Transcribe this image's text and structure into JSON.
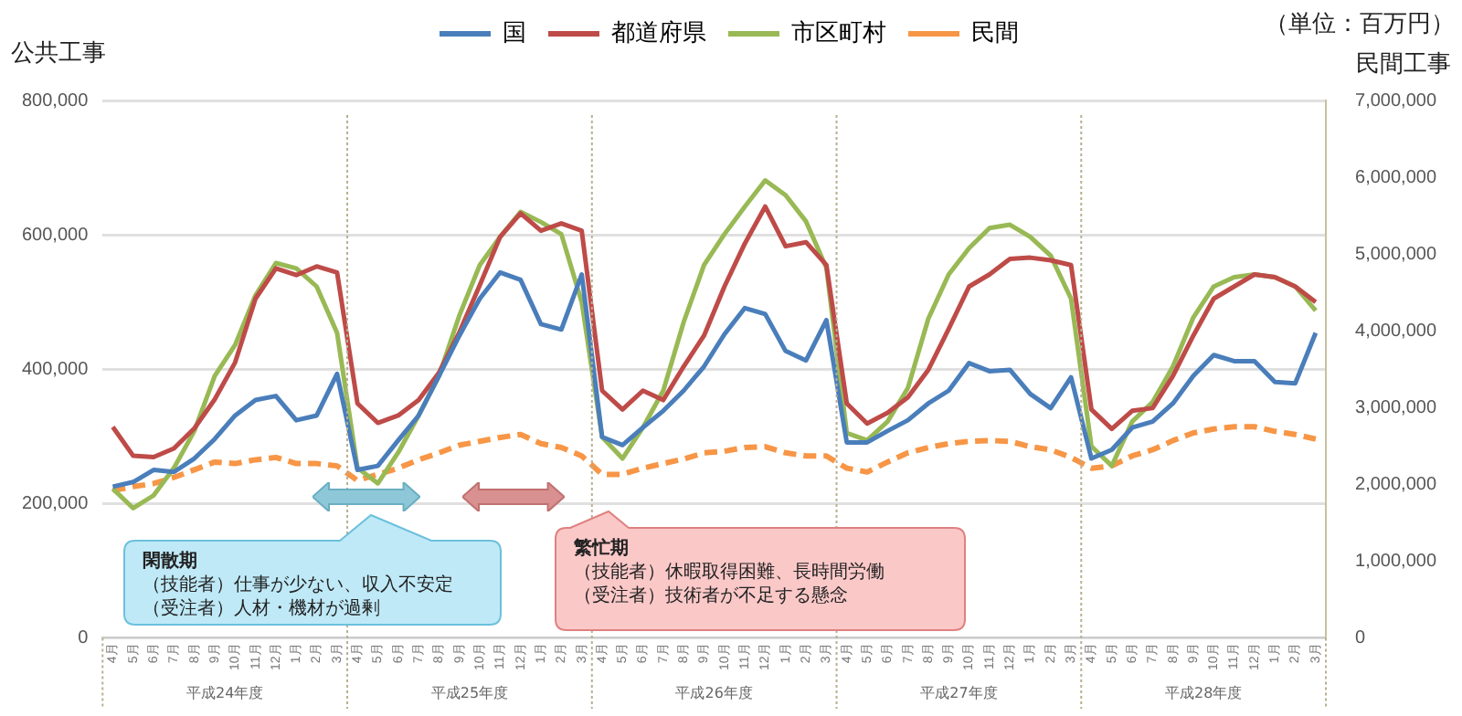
{
  "chart_data": {
    "type": "line",
    "ylabel": "公共工事",
    "y2label": "民間工事",
    "annotations": [
      "（単位：百万円）",
      "閑散期",
      "（技能者）仕事が少ない、収入不安定",
      "（受注者）人材・機材が過剰",
      "繁忙期",
      "（技能者）休暇取得困難、長時間労働",
      "（受注者）技術者が不足する懸念",
      "平成24年度",
      "平成25年度",
      "平成26年度",
      "平成27年度",
      "平成28年度"
    ],
    "categories": [
      "4月",
      "5月",
      "6月",
      "7月",
      "8月",
      "9月",
      "10月",
      "11月",
      "12月",
      "1月",
      "2月",
      "3月",
      "4月",
      "5月",
      "6月",
      "7月",
      "8月",
      "9月",
      "10月",
      "11月",
      "12月",
      "1月",
      "2月",
      "3月",
      "4月",
      "5月",
      "6月",
      "7月",
      "8月",
      "9月",
      "10月",
      "11月",
      "12月",
      "1月",
      "2月",
      "3月",
      "4月",
      "5月",
      "6月",
      "7月",
      "8月",
      "9月",
      "10月",
      "11月",
      "12月",
      "1月",
      "2月",
      "3月",
      "4月",
      "5月",
      "6月",
      "7月",
      "8月",
      "9月",
      "10月",
      "11月",
      "12月",
      "1月",
      "2月",
      "3月"
    ],
    "series": [
      {
        "name": "国",
        "color": "#4a7ebb",
        "values": [
          225000,
          232000,
          250000,
          247000,
          267000,
          296000,
          331000,
          354000,
          360000,
          324000,
          331000,
          393000,
          250000,
          256000,
          294000,
          331000,
          390000,
          450000,
          505000,
          544000,
          533000,
          467000,
          459000,
          541000,
          299000,
          287000,
          313000,
          338000,
          368000,
          404000,
          452000,
          491000,
          482000,
          427000,
          413000,
          473000,
          291000,
          291000,
          308000,
          324000,
          349000,
          368000,
          409000,
          397000,
          399000,
          363000,
          342000,
          388000,
          267000,
          280000,
          313000,
          322000,
          349000,
          390000,
          421000,
          412000,
          412000,
          381000,
          379000,
          454000
        ]
      },
      {
        "name": "都道府県",
        "color": "#be4b48",
        "values": [
          314000,
          271000,
          269000,
          282000,
          312000,
          355000,
          410000,
          505000,
          550000,
          540000,
          553000,
          544000,
          349000,
          320000,
          331000,
          354000,
          395000,
          455000,
          525000,
          597000,
          632000,
          606000,
          617000,
          606000,
          368000,
          340000,
          368000,
          354000,
          404000,
          450000,
          523000,
          587000,
          642000,
          583000,
          589000,
          555000,
          349000,
          319000,
          335000,
          358000,
          399000,
          460000,
          523000,
          541000,
          564000,
          566000,
          562000,
          555000,
          340000,
          311000,
          338000,
          342000,
          390000,
          450000,
          505000,
          523000,
          541000,
          537000,
          523000,
          500000
        ]
      },
      {
        "name": "市区町村",
        "color": "#98b954",
        "values": [
          222000,
          193000,
          212000,
          253000,
          308000,
          390000,
          436000,
          510000,
          558000,
          550000,
          523000,
          454000,
          253000,
          230000,
          276000,
          331000,
          390000,
          480000,
          555000,
          597000,
          634000,
          619000,
          601000,
          500000,
          299000,
          267000,
          313000,
          368000,
          470000,
          555000,
          601000,
          642000,
          681000,
          659000,
          620000,
          551000,
          305000,
          294000,
          322000,
          372000,
          475000,
          541000,
          580000,
          610000,
          615000,
          597000,
          569000,
          505000,
          285000,
          256000,
          322000,
          351000,
          404000,
          477000,
          523000,
          537000,
          541000,
          537000,
          523000,
          487000
        ]
      },
      {
        "name": "民間",
        "color": "#f79646",
        "axis": "y2",
        "line_style": "dashed",
        "values": [
          1920000,
          1970000,
          2010000,
          2090000,
          2190000,
          2290000,
          2270000,
          2320000,
          2350000,
          2270000,
          2270000,
          2240000,
          2050000,
          2130000,
          2210000,
          2320000,
          2410000,
          2510000,
          2560000,
          2610000,
          2650000,
          2530000,
          2480000,
          2370000,
          2130000,
          2130000,
          2210000,
          2270000,
          2330000,
          2410000,
          2430000,
          2480000,
          2490000,
          2410000,
          2370000,
          2370000,
          2210000,
          2160000,
          2290000,
          2410000,
          2480000,
          2530000,
          2560000,
          2570000,
          2560000,
          2490000,
          2450000,
          2350000,
          2210000,
          2240000,
          2370000,
          2450000,
          2570000,
          2670000,
          2720000,
          2750000,
          2750000,
          2690000,
          2650000,
          2590000
        ]
      }
    ],
    "ylim": [
      0,
      800000
    ],
    "yticks": [
      {
        "value": 0,
        "label": "0"
      },
      {
        "value": 200000,
        "label": "200,000"
      },
      {
        "value": 400000,
        "label": "400,000"
      },
      {
        "value": 600000,
        "label": "600,000"
      },
      {
        "value": 800000,
        "label": "800,000"
      }
    ],
    "y2lim": [
      0,
      7000000
    ],
    "y2ticks": [
      {
        "value": 0,
        "label": "0"
      },
      {
        "value": 1000000,
        "label": "1,000,000"
      },
      {
        "value": 2000000,
        "label": "2,000,000"
      },
      {
        "value": 3000000,
        "label": "3,000,000"
      },
      {
        "value": 4000000,
        "label": "4,000,000"
      },
      {
        "value": 5000000,
        "label": "5,000,000"
      },
      {
        "value": 6000000,
        "label": "6,000,000"
      },
      {
        "value": 7000000,
        "label": "7,000,000"
      }
    ],
    "grid": "y",
    "legend": "top",
    "marker": "none",
    "line_style": "solid"
  }
}
